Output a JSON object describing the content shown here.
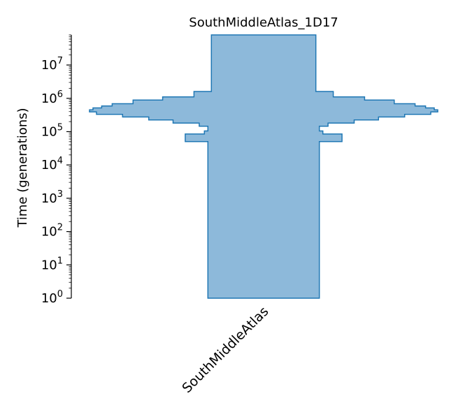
{
  "chart_data": {
    "type": "area",
    "title": "SouthMiddleAtlas_1D17",
    "ylabel": "Time (generations)",
    "yscale": "log",
    "ylim": [
      1,
      80000000
    ],
    "yticks": [
      {
        "base": "10",
        "exp": "0",
        "value": 1
      },
      {
        "base": "10",
        "exp": "1",
        "value": 10
      },
      {
        "base": "10",
        "exp": "2",
        "value": 100
      },
      {
        "base": "10",
        "exp": "3",
        "value": 1000
      },
      {
        "base": "10",
        "exp": "4",
        "value": 10000
      },
      {
        "base": "10",
        "exp": "5",
        "value": 100000
      },
      {
        "base": "10",
        "exp": "6",
        "value": 1000000
      },
      {
        "base": "10",
        "exp": "7",
        "value": 10000000
      }
    ],
    "categories": [
      "SouthMiddleAtlas"
    ],
    "fill_color": "#8db9da",
    "edge_color": "#1f77b4",
    "series": [
      {
        "category": "SouthMiddleAtlas",
        "epochs": [
          {
            "start": 1,
            "end": 50000,
            "relative_width": 0.32
          },
          {
            "start": 50000,
            "end": 85000,
            "relative_width": 0.45
          },
          {
            "start": 85000,
            "end": 105000,
            "relative_width": 0.34
          },
          {
            "start": 105000,
            "end": 145000,
            "relative_width": 0.32
          },
          {
            "start": 145000,
            "end": 180000,
            "relative_width": 0.37
          },
          {
            "start": 180000,
            "end": 225000,
            "relative_width": 0.52
          },
          {
            "start": 225000,
            "end": 275000,
            "relative_width": 0.66
          },
          {
            "start": 275000,
            "end": 330000,
            "relative_width": 0.81
          },
          {
            "start": 330000,
            "end": 390000,
            "relative_width": 0.96
          },
          {
            "start": 390000,
            "end": 450000,
            "relative_width": 1.0
          },
          {
            "start": 450000,
            "end": 515000,
            "relative_width": 0.98
          },
          {
            "start": 515000,
            "end": 590000,
            "relative_width": 0.93
          },
          {
            "start": 590000,
            "end": 690000,
            "relative_width": 0.87
          },
          {
            "start": 690000,
            "end": 890000,
            "relative_width": 0.75
          },
          {
            "start": 890000,
            "end": 1100000,
            "relative_width": 0.58
          },
          {
            "start": 1100000,
            "end": 1600000,
            "relative_width": 0.4
          },
          {
            "start": 1600000,
            "end": 80000000,
            "relative_width": 0.3
          }
        ]
      }
    ]
  }
}
